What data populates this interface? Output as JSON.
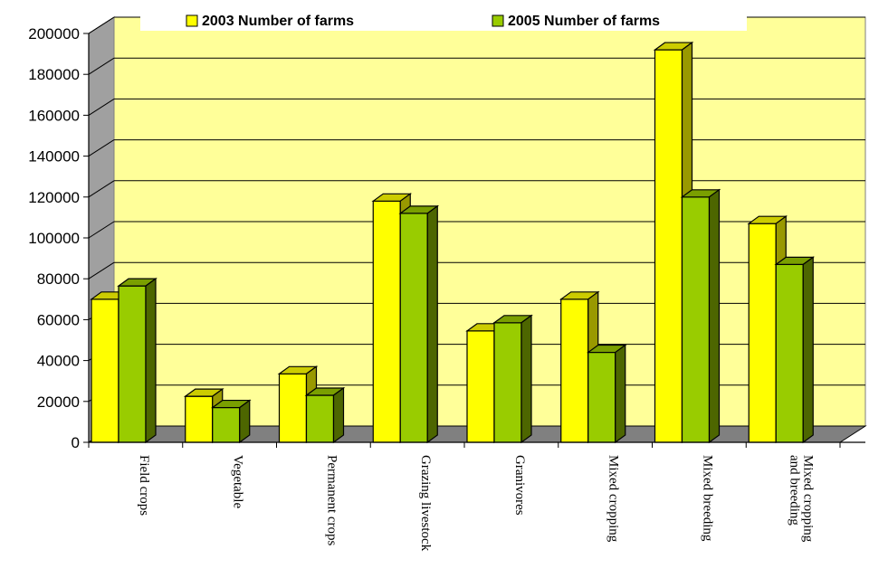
{
  "chart_data": {
    "type": "bar",
    "categories": [
      "Field crops",
      "Vegetable",
      "Permanent crops",
      "Grazing livestock",
      "Granivores",
      "Mixed cropping",
      "Mixed breeding",
      "Mixed cropping and breeding"
    ],
    "category_lines": [
      [
        "Field crops"
      ],
      [
        "Vegetable"
      ],
      [
        "Permanent crops"
      ],
      [
        "Grazing livestock"
      ],
      [
        "Granivores"
      ],
      [
        "Mixed cropping"
      ],
      [
        "Mixed breeding"
      ],
      [
        "Mixed cropping",
        "and breeding"
      ]
    ],
    "series": [
      {
        "name": "2003 Number of farms",
        "values": [
          70000,
          22500,
          33500,
          118000,
          54500,
          70000,
          192000,
          107000
        ]
      },
      {
        "name": "2005 Number of farms",
        "values": [
          76500,
          17000,
          23000,
          112000,
          58500,
          44000,
          120000,
          87000
        ]
      }
    ],
    "yticks": [
      0,
      20000,
      40000,
      60000,
      80000,
      100000,
      120000,
      140000,
      160000,
      180000,
      200000
    ],
    "ylim": [
      0,
      200000
    ],
    "legend_position": "top",
    "grid": true,
    "colors": {
      "series_2003_front": "#ffff00",
      "series_2003_top": "#cccc00",
      "series_2003_side": "#999900",
      "series_2005_front": "#99cc00",
      "series_2005_top": "#7a9f00",
      "series_2005_side": "#4d6600",
      "wall": "#ffff99",
      "floor": "#808080",
      "side_wall": "#a0a0a0"
    }
  }
}
